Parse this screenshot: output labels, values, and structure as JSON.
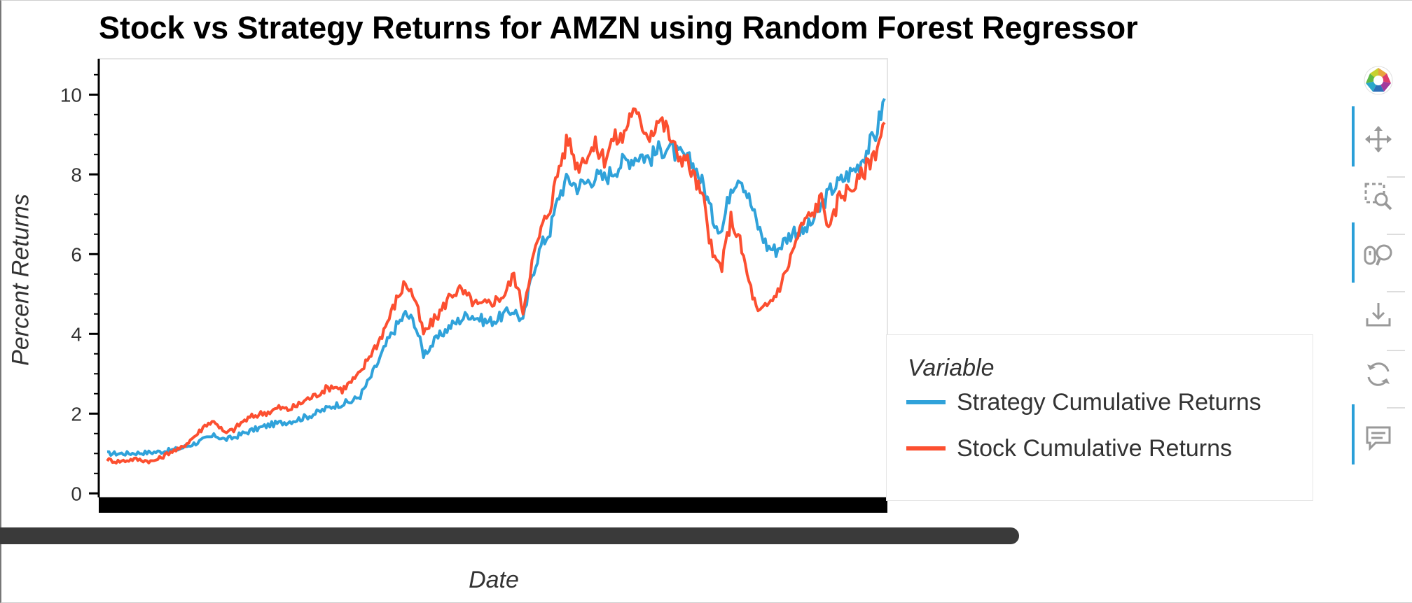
{
  "chart_data": {
    "type": "line",
    "title": "Stock vs Strategy Returns for AMZN using Random Forest Regressor",
    "xlabel": "Date",
    "ylabel": "Percent Returns",
    "ylim": [
      -0.1,
      10.9
    ],
    "yticks": [
      0,
      2,
      4,
      6,
      8,
      10
    ],
    "legend_title": "Variable",
    "legend_position": "right",
    "series": [
      {
        "name": "Strategy Cumulative Returns",
        "color": "#30a2da",
        "values": [
          1.0,
          1.0,
          1.0,
          1.01,
          1.02,
          1.03,
          1.05,
          1.08,
          1.12,
          1.2,
          1.28,
          1.38,
          1.45,
          1.35,
          1.4,
          1.5,
          1.58,
          1.65,
          1.72,
          1.76,
          1.8,
          1.85,
          1.92,
          2.0,
          2.1,
          2.2,
          2.25,
          2.3,
          2.45,
          2.85,
          3.3,
          3.8,
          4.2,
          4.5,
          4.3,
          3.5,
          3.75,
          4.0,
          4.2,
          4.35,
          4.5,
          4.4,
          4.3,
          4.35,
          4.5,
          4.6,
          4.3,
          5.5,
          6.2,
          6.6,
          7.5,
          7.9,
          7.7,
          7.8,
          7.95,
          7.9,
          8.1,
          8.3,
          8.4,
          8.5,
          8.4,
          8.6,
          8.7,
          8.5,
          8.4,
          8.2,
          7.7,
          6.9,
          6.6,
          7.7,
          8.0,
          7.4,
          6.7,
          6.2,
          6.1,
          6.35,
          6.6,
          6.55,
          6.8,
          7.2,
          7.6,
          7.8,
          8.0,
          8.2,
          8.6,
          9.0,
          9.9
        ]
      },
      {
        "name": "Stock Cumulative Returns",
        "color": "#fc4f30",
        "values": [
          0.85,
          0.8,
          0.82,
          0.86,
          0.83,
          0.8,
          0.9,
          1.05,
          1.1,
          1.3,
          1.5,
          1.75,
          1.8,
          1.5,
          1.6,
          1.8,
          1.92,
          2.0,
          2.05,
          2.15,
          2.1,
          2.2,
          2.35,
          2.45,
          2.6,
          2.7,
          2.6,
          2.8,
          3.0,
          3.45,
          3.8,
          4.3,
          4.85,
          5.3,
          4.9,
          4.0,
          4.3,
          4.6,
          5.0,
          5.1,
          4.9,
          4.7,
          4.75,
          4.85,
          5.0,
          5.5,
          4.6,
          5.8,
          6.6,
          7.2,
          8.2,
          8.9,
          8.2,
          8.5,
          8.7,
          8.4,
          8.9,
          8.9,
          9.6,
          9.3,
          9.0,
          9.4,
          9.1,
          8.5,
          8.4,
          7.9,
          7.3,
          5.9,
          5.7,
          6.9,
          6.3,
          5.3,
          4.5,
          4.7,
          5.0,
          5.5,
          6.2,
          6.8,
          7.0,
          7.4,
          6.6,
          7.5,
          7.6,
          7.8,
          8.2,
          8.6,
          9.3
        ]
      }
    ]
  },
  "toolbar": {
    "logo": "bokeh-logo-icon",
    "tools": [
      {
        "icon": "pan-icon",
        "active": true
      },
      {
        "icon": "box-zoom-icon",
        "active": false
      },
      {
        "icon": "wheel-zoom-icon",
        "active": true
      },
      {
        "icon": "save-icon",
        "active": false
      },
      {
        "icon": "reset-icon",
        "active": false
      },
      {
        "icon": "hover-icon",
        "active": true
      }
    ]
  }
}
